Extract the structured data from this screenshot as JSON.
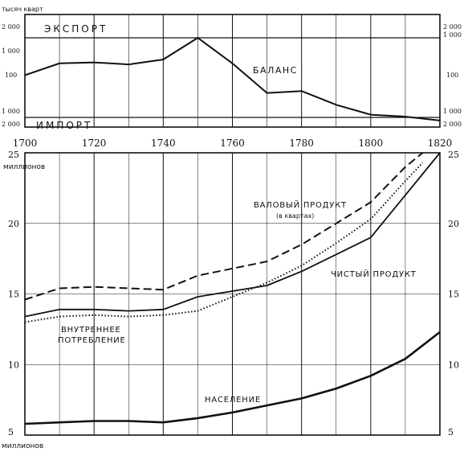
{
  "chart_data": [
    {
      "type": "line",
      "title": "",
      "unit_label": "тысяч кварт",
      "xlim": [
        1700,
        1820
      ],
      "y_ticks_left": [
        "2 000",
        "1 000",
        "100",
        "1 000",
        "2 000"
      ],
      "y_ticks_right": [
        "2 000",
        "1 000",
        "100",
        "1 000",
        "2 000"
      ],
      "y_scale_note": "balance, export positive / import negative",
      "ylim": [
        -2000,
        2000
      ],
      "reference_lines": [
        {
          "label": "ЭКСПОРТ",
          "y": 2000
        },
        {
          "label": "ИМПОРТ",
          "y": -2000
        }
      ],
      "series": [
        {
          "name": "БАЛАНС",
          "x": [
            1700,
            1710,
            1720,
            1730,
            1740,
            1750,
            1760,
            1770,
            1780,
            1790,
            1800,
            1810,
            1820
          ],
          "values": [
            100,
            700,
            750,
            650,
            900,
            2000,
            700,
            -800,
            -700,
            -1400,
            -1900,
            -2000,
            -2200
          ]
        }
      ]
    },
    {
      "type": "line",
      "title": "",
      "unit_label_top": "миллионов",
      "unit_label_bottom": "миллионов",
      "x_ticks": [
        "1700",
        "1720",
        "1740",
        "1760",
        "1780",
        "1800",
        "1820"
      ],
      "y_ticks": [
        "25",
        "20",
        "15",
        "10",
        "5"
      ],
      "xlim": [
        1700,
        1820
      ],
      "ylim": [
        5,
        25
      ],
      "grid": true,
      "series": [
        {
          "name": "ВАЛОВЫЙ ПРОДУКТ",
          "note": "(в квартах)",
          "style": "dashed",
          "x": [
            1700,
            1710,
            1720,
            1730,
            1740,
            1750,
            1760,
            1770,
            1780,
            1790,
            1800,
            1810,
            1815
          ],
          "values": [
            14.6,
            15.4,
            15.5,
            15.4,
            15.3,
            16.3,
            16.8,
            17.3,
            18.5,
            20.0,
            21.5,
            24.0,
            25.0
          ]
        },
        {
          "name": "ЧИСТЫЙ ПРОДУКТ",
          "style": "solid",
          "x": [
            1700,
            1710,
            1720,
            1730,
            1740,
            1750,
            1760,
            1770,
            1780,
            1790,
            1800,
            1810,
            1820
          ],
          "values": [
            13.4,
            13.9,
            13.9,
            13.8,
            13.9,
            14.8,
            15.2,
            15.6,
            16.6,
            17.8,
            19.0,
            22.0,
            25.0
          ]
        },
        {
          "name": "ВНУТРЕННЕЕ ПОТРЕБЛЕНИЕ",
          "style": "dotted",
          "x": [
            1700,
            1710,
            1720,
            1730,
            1740,
            1750,
            1760,
            1770,
            1780,
            1790,
            1800,
            1810,
            1815
          ],
          "values": [
            13.0,
            13.4,
            13.5,
            13.4,
            13.5,
            13.8,
            14.8,
            15.8,
            17.0,
            18.6,
            20.3,
            23.0,
            24.3
          ]
        },
        {
          "name": "НАСЕЛЕНИЕ",
          "style": "solid-thick",
          "x": [
            1700,
            1710,
            1720,
            1730,
            1740,
            1750,
            1760,
            1770,
            1780,
            1790,
            1800,
            1810,
            1820
          ],
          "values": [
            5.8,
            5.9,
            6.0,
            6.0,
            5.9,
            6.2,
            6.6,
            7.1,
            7.6,
            8.3,
            9.2,
            10.4,
            12.3
          ]
        }
      ],
      "labels": {
        "gross": "ВАЛОВЫЙ ПРОДУКТ",
        "gross_note": "(в квартах)",
        "net": "ЧИСТЫЙ ПРОДУКТ",
        "cons_1": "ВНУТРЕННЕЕ",
        "cons_2": "ПОТРЕБЛЕНИЕ",
        "pop": "НАСЕЛЕНИЕ"
      }
    }
  ]
}
